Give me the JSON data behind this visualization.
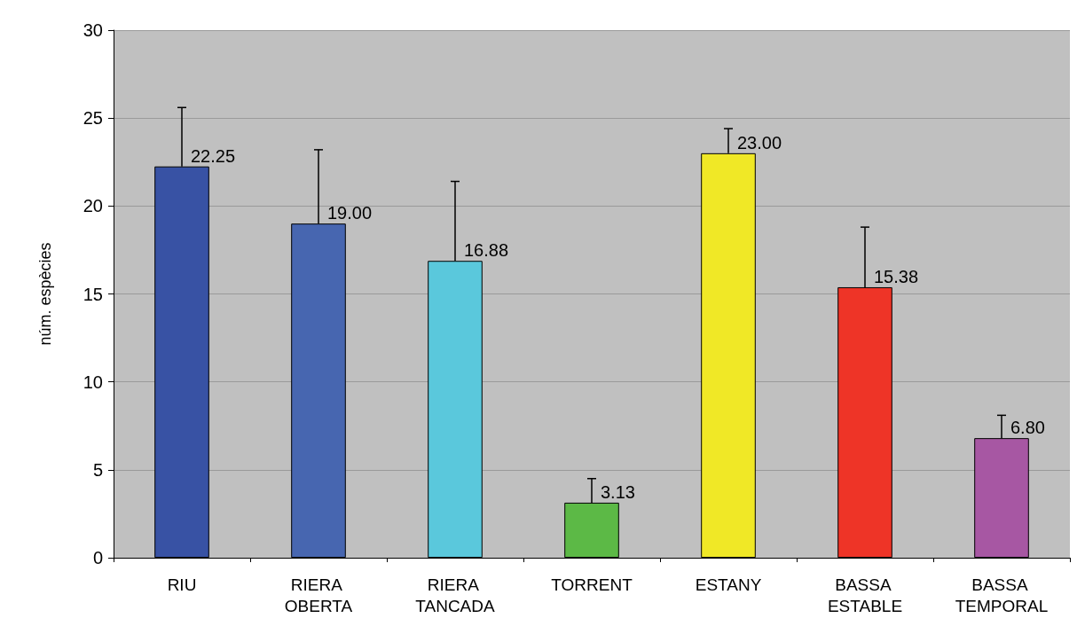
{
  "chart_data": {
    "type": "bar",
    "ylabel": "núm. espècies",
    "categories": [
      "RIU",
      "RIERA OBERTA",
      "RIERA TANCADA",
      "TORRENT",
      "ESTANY",
      "BASSA ESTABLE",
      "BASSA TEMPORAL"
    ],
    "values": [
      22.25,
      19.0,
      16.88,
      3.13,
      23.0,
      15.38,
      6.8
    ],
    "value_labels": [
      "22.25",
      "19.00",
      "16.88",
      "3.13",
      "23.00",
      "15.38",
      "6.80"
    ],
    "errors": [
      [
        22.25,
        25.6
      ],
      [
        19.0,
        23.2
      ],
      [
        16.88,
        21.4
      ],
      [
        3.13,
        4.5
      ],
      [
        23.0,
        24.4
      ],
      [
        15.38,
        18.8
      ],
      [
        6.8,
        8.1
      ]
    ],
    "colors": [
      "#3852a4",
      "#4766b0",
      "#5ac8dc",
      "#5cb946",
      "#f0e826",
      "#ee3427",
      "#a757a3"
    ],
    "ylim": [
      0,
      30
    ],
    "yticks": [
      0,
      5,
      10,
      15,
      20,
      25,
      30
    ],
    "grid": "y"
  }
}
